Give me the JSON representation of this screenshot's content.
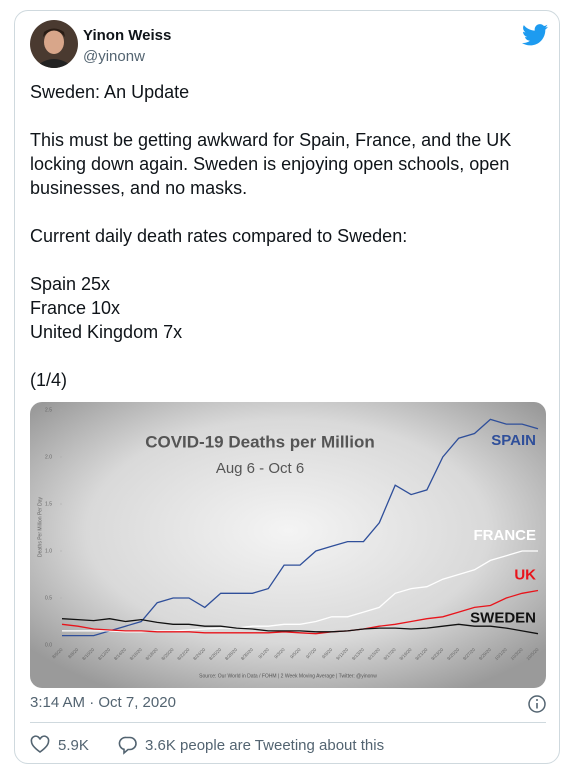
{
  "tweet": {
    "author": "Yinon Weiss",
    "handle": "@yinonw",
    "text_blocks": [
      [
        "Sweden: An Update"
      ],
      [
        "This must be getting awkward for Spain, France, and the UK locking down again. Sweden is enjoying open schools, open businesses, and no masks."
      ],
      [
        "Current daily death rates compared to Sweden:"
      ],
      [
        "Spain 25x",
        "France 10x",
        "United Kingdom 7x"
      ],
      [
        "(1/4)"
      ]
    ],
    "timestamp": "3:14 AM · Oct 7, 2020",
    "likes": "5.9K",
    "conversation": "3.6K people are Tweeting about this"
  },
  "chart_data": {
    "type": "line",
    "title": "COVID-19 Deaths per Million",
    "subtitle": "Aug 6 - Oct 6",
    "y_label": "Deaths Per Million Per Day",
    "source": "Source: Our World in Data / FOHM | 2 Week Moving Average | Twitter: @yinonw",
    "categories": [
      "8/6/20",
      "8/8/20",
      "8/10/20",
      "8/12/20",
      "8/14/20",
      "8/16/20",
      "8/18/20",
      "8/20/20",
      "8/22/20",
      "8/24/20",
      "8/26/20",
      "8/28/20",
      "8/30/20",
      "9/1/20",
      "9/3/20",
      "9/5/20",
      "9/7/20",
      "9/9/20",
      "9/11/20",
      "9/13/20",
      "9/15/20",
      "9/17/20",
      "9/19/20",
      "9/21/20",
      "9/23/20",
      "9/25/20",
      "9/27/20",
      "9/29/20",
      "10/1/20",
      "10/3/20",
      "10/5/20"
    ],
    "series": [
      {
        "name": "SPAIN",
        "color": "#2f4f9a",
        "values": [
          0.1,
          0.1,
          0.1,
          0.15,
          0.2,
          0.25,
          0.45,
          0.5,
          0.5,
          0.4,
          0.55,
          0.55,
          0.55,
          0.6,
          0.85,
          0.85,
          1.0,
          1.05,
          1.1,
          1.1,
          1.3,
          1.7,
          1.6,
          1.65,
          2.0,
          2.2,
          2.25,
          2.4,
          2.35,
          2.35,
          2.3
        ]
      },
      {
        "name": "FRANCE",
        "color": "#ffffff",
        "values": [
          0.15,
          0.15,
          0.15,
          0.15,
          0.14,
          0.14,
          0.15,
          0.15,
          0.16,
          0.17,
          0.18,
          0.18,
          0.2,
          0.2,
          0.22,
          0.22,
          0.25,
          0.3,
          0.3,
          0.35,
          0.4,
          0.55,
          0.6,
          0.62,
          0.7,
          0.75,
          0.8,
          0.9,
          0.95,
          1.0,
          1.0
        ]
      },
      {
        "name": "UK",
        "color": "#e8141b",
        "values": [
          0.22,
          0.2,
          0.17,
          0.16,
          0.15,
          0.15,
          0.14,
          0.14,
          0.14,
          0.13,
          0.13,
          0.13,
          0.13,
          0.13,
          0.14,
          0.13,
          0.12,
          0.14,
          0.15,
          0.17,
          0.2,
          0.22,
          0.25,
          0.28,
          0.3,
          0.35,
          0.4,
          0.42,
          0.5,
          0.55,
          0.58
        ]
      },
      {
        "name": "SWEDEN",
        "color": "#111111",
        "values": [
          0.28,
          0.27,
          0.26,
          0.28,
          0.25,
          0.27,
          0.24,
          0.22,
          0.22,
          0.2,
          0.2,
          0.18,
          0.17,
          0.15,
          0.15,
          0.15,
          0.14,
          0.14,
          0.15,
          0.17,
          0.18,
          0.18,
          0.17,
          0.18,
          0.2,
          0.22,
          0.2,
          0.2,
          0.18,
          0.15,
          0.12
        ]
      }
    ],
    "ylim": [
      0,
      2.5
    ],
    "yticks": [
      {
        "value": 0,
        "label": "0.0"
      },
      0.5,
      {
        "value": 1,
        "label": "1.0"
      },
      1.5,
      {
        "value": 2,
        "label": "2.0"
      },
      2.5
    ]
  }
}
